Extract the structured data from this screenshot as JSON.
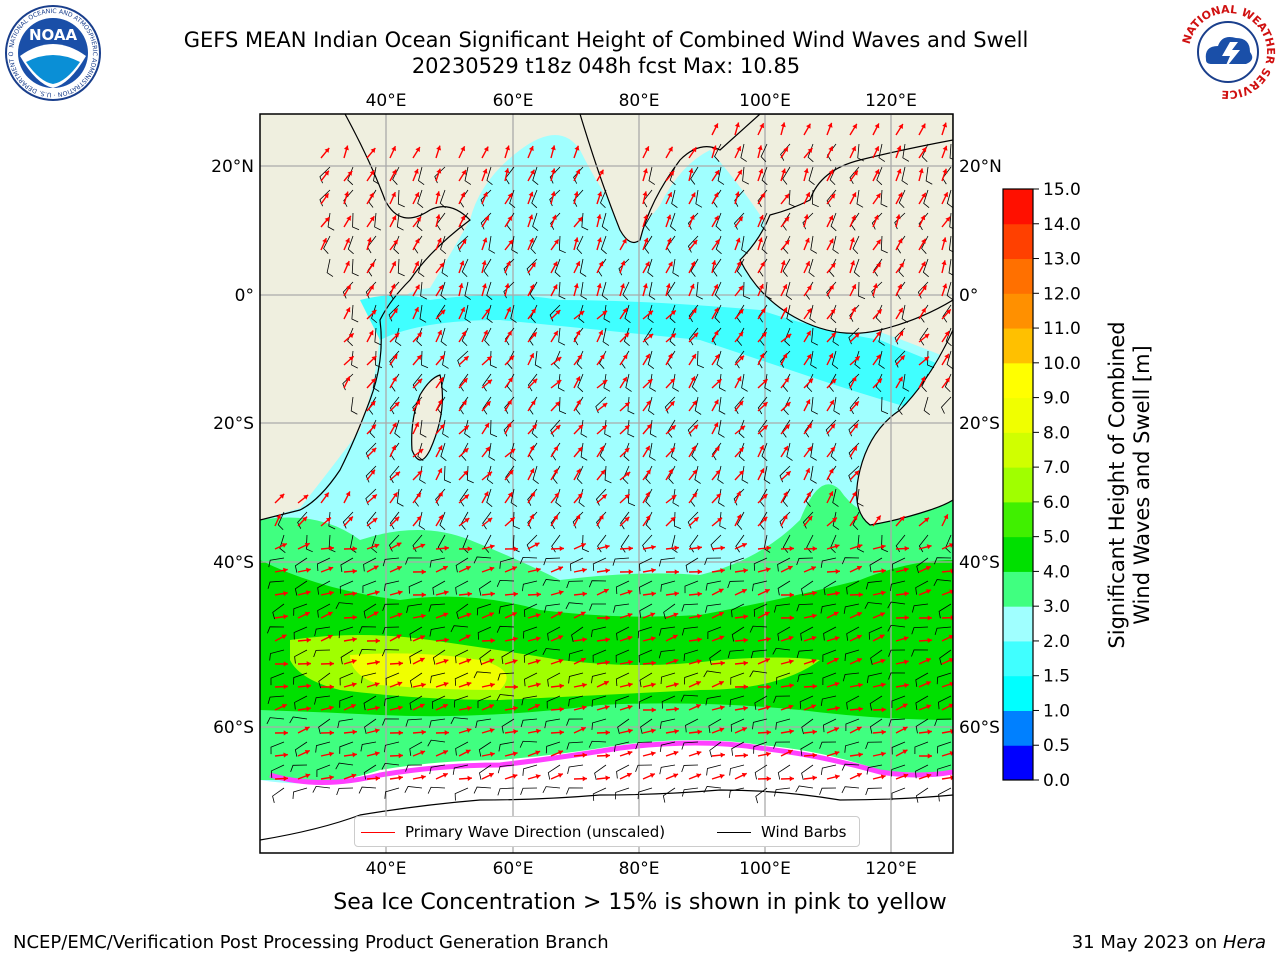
{
  "title": {
    "line1": "GEFS MEAN Indian Ocean Significant Height of Combined Wind Waves and Swell",
    "line2": "20230529 t18z 048h fcst   Max: 10.85"
  },
  "map": {
    "lon_labels": [
      "40°E",
      "60°E",
      "80°E",
      "100°E",
      "120°E"
    ],
    "lat_labels": [
      "20°N",
      "0°",
      "20°S",
      "40°S",
      "60°S"
    ],
    "land_color": "#efefdf",
    "legend": {
      "wave_label": "Primary Wave Direction (unscaled)",
      "wave_color": "#ff0000",
      "wind_label": "Wind Barbs",
      "wind_color": "#000000"
    }
  },
  "colorbar": {
    "label_line1": "Significant Height of Combined",
    "label_line2": "Wind Waves and Swell [m]",
    "ticks": [
      "0.0",
      "0.5",
      "1.0",
      "1.5",
      "2.0",
      "3.0",
      "4.0",
      "5.0",
      "6.0",
      "7.0",
      "8.0",
      "9.0",
      "10.0",
      "11.0",
      "12.0",
      "13.0",
      "14.0",
      "15.0"
    ],
    "colors": [
      "#0000ff",
      "#0080ff",
      "#00ffff",
      "#40ffff",
      "#a0ffff",
      "#40ff80",
      "#00e000",
      "#40f000",
      "#a0ff00",
      "#d0ff00",
      "#f0ff00",
      "#ffff00",
      "#ffc000",
      "#ff9000",
      "#ff7000",
      "#ff4000",
      "#ff1000"
    ]
  },
  "footer": {
    "note": "Sea Ice Concentration > 15% is shown in pink to yellow",
    "left": "NCEP/EMC/Verification Post Processing Product Generation Branch",
    "right_date": "31 May 2023 on ",
    "right_host": "Hera"
  },
  "logos": {
    "noaa": "NOAA",
    "noaa_ring": "NATIONAL OCEANIC AND ATMOSPHERIC ADMINISTRATION · U.S. DEPARTMENT OF COMMERCE",
    "nws_ring": "NATIONAL WEATHER SERVICE"
  }
}
